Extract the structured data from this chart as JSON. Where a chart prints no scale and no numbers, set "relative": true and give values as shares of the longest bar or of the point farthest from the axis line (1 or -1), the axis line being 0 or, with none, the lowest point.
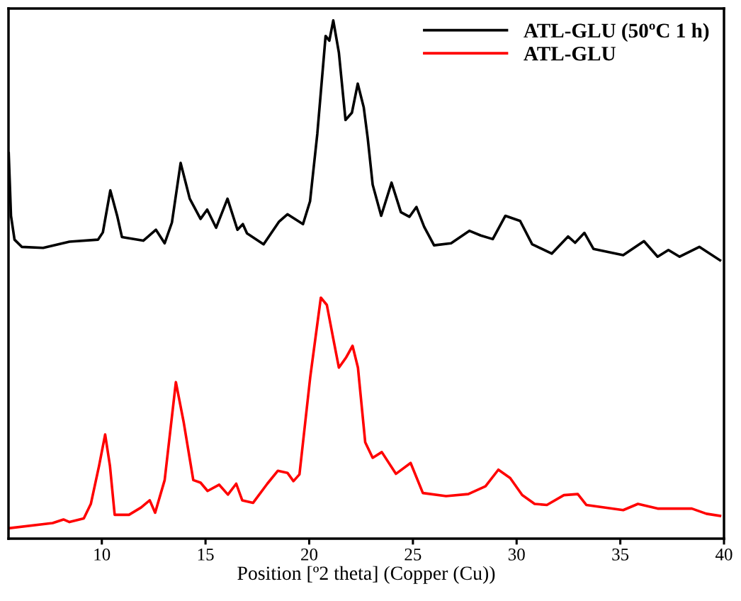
{
  "chart_data": {
    "type": "line",
    "relative": true,
    "xlabel": "Position [º2 theta] (Copper (Cu))",
    "xlim": [
      5.5,
      40
    ],
    "xticks": [
      10,
      15,
      20,
      25,
      30,
      35,
      40
    ],
    "legend": "top right",
    "grid": false,
    "marker": "none",
    "line_style": "solid",
    "series": [
      {
        "name": "ATL-GLU (50ºC 1 h)",
        "color": "#000000",
        "x": [
          5.51,
          5.62,
          5.79,
          6.14,
          7.17,
          8.44,
          9.82,
          10.05,
          10.41,
          10.74,
          10.97,
          12.0,
          12.61,
          13.03,
          13.38,
          13.8,
          14.24,
          14.76,
          15.08,
          15.51,
          16.06,
          16.54,
          16.8,
          17.0,
          17.8,
          18.55,
          18.95,
          19.7,
          20.04,
          20.39,
          20.79,
          20.97,
          21.16,
          21.43,
          21.75,
          22.06,
          22.34,
          22.63,
          22.82,
          23.06,
          23.47,
          23.97,
          24.42,
          24.83,
          25.17,
          25.54,
          26.02,
          26.84,
          27.72,
          28.27,
          28.85,
          29.46,
          30.17,
          30.75,
          31.7,
          32.48,
          32.82,
          33.27,
          33.71,
          35.14,
          36.14,
          36.8,
          37.32,
          37.86,
          38.81,
          39.81
        ],
        "values": [
          0.744,
          0.623,
          0.577,
          0.563,
          0.561,
          0.573,
          0.577,
          0.591,
          0.672,
          0.623,
          0.582,
          0.575,
          0.596,
          0.57,
          0.61,
          0.725,
          0.656,
          0.617,
          0.635,
          0.6,
          0.656,
          0.596,
          0.607,
          0.589,
          0.568,
          0.612,
          0.626,
          0.607,
          0.651,
          0.781,
          0.97,
          0.961,
          1.0,
          0.938,
          0.808,
          0.822,
          0.878,
          0.832,
          0.773,
          0.683,
          0.623,
          0.687,
          0.63,
          0.621,
          0.64,
          0.602,
          0.566,
          0.57,
          0.594,
          0.585,
          0.578,
          0.623,
          0.613,
          0.568,
          0.55,
          0.583,
          0.571,
          0.59,
          0.559,
          0.547,
          0.574,
          0.544,
          0.557,
          0.544,
          0.563,
          0.537
        ]
      },
      {
        "name": "ATL-GLU",
        "color": "#ff0000",
        "x": [
          5.51,
          7.63,
          8.15,
          8.44,
          9.13,
          9.47,
          9.87,
          10.16,
          10.39,
          10.62,
          11.31,
          11.89,
          12.31,
          12.57,
          13.03,
          13.57,
          13.95,
          14.41,
          14.76,
          15.1,
          15.66,
          16.08,
          16.48,
          16.77,
          17.29,
          17.98,
          18.49,
          18.95,
          19.24,
          19.53,
          20.05,
          20.56,
          20.85,
          21.14,
          21.43,
          21.77,
          22.09,
          22.35,
          22.7,
          23.06,
          23.5,
          24.18,
          24.89,
          25.48,
          26.6,
          27.67,
          28.5,
          29.12,
          29.69,
          30.27,
          30.87,
          31.46,
          32.28,
          32.95,
          33.36,
          35.14,
          35.85,
          36.8,
          38.45,
          39.15,
          39.81
        ],
        "values": [
          0.02,
          0.03,
          0.037,
          0.032,
          0.039,
          0.067,
          0.141,
          0.201,
          0.141,
          0.046,
          0.046,
          0.06,
          0.074,
          0.05,
          0.113,
          0.302,
          0.224,
          0.113,
          0.108,
          0.092,
          0.104,
          0.085,
          0.106,
          0.074,
          0.069,
          0.106,
          0.131,
          0.127,
          0.111,
          0.124,
          0.312,
          0.465,
          0.451,
          0.39,
          0.33,
          0.349,
          0.372,
          0.33,
          0.186,
          0.156,
          0.167,
          0.125,
          0.146,
          0.088,
          0.082,
          0.086,
          0.101,
          0.133,
          0.117,
          0.084,
          0.067,
          0.065,
          0.084,
          0.086,
          0.065,
          0.055,
          0.067,
          0.058,
          0.058,
          0.048,
          0.044
        ]
      }
    ]
  }
}
